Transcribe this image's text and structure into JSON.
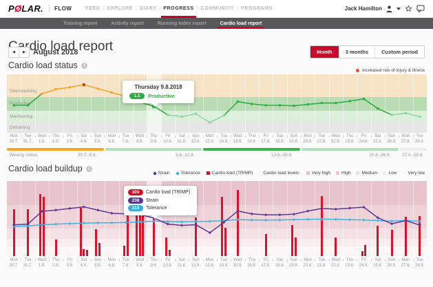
{
  "app": {
    "logo_p": "P",
    "logo_o": "Ø",
    "logo_rest": "LAR.",
    "flow": "FLOW",
    "nav": [
      "FEED",
      "EXPLORE",
      "DIARY",
      "PROGRESS",
      "COMMUNITY",
      "PROGRAMS"
    ],
    "active_nav": "PROGRESS",
    "user": "Jack Hamilton"
  },
  "subnav": {
    "items": [
      "Training report",
      "Activity report",
      "Running Index report",
      "Cardio load report"
    ],
    "active": "Cardio load report"
  },
  "page": {
    "title": "Cardio load report",
    "period_label": "August 2018",
    "period_buttons": [
      "Month",
      "3 months",
      "Custom period"
    ],
    "active_period": "Month",
    "prev_arrow": "◀",
    "next_arrow": "▶"
  },
  "status_section": {
    "title": "Cardio load status",
    "risk_legend": "Increased risk of injury & illness",
    "weekly_status_label": "Weekly status"
  },
  "buildup_section": {
    "title": "Cardio load buildup",
    "legend": {
      "strain": "Strain",
      "tolerance": "Tolerance",
      "trimp": "Cardio load (TRIMP)",
      "levels_label": "Cardio load levels:",
      "levels": [
        "Very high",
        "High",
        "Medium",
        "Low",
        "Very low"
      ],
      "level_colors": [
        "#ecb9c4",
        "#f0c9d2",
        "#f5dae0",
        "#f9e9ec",
        "#fcf4f5"
      ]
    }
  },
  "colors": {
    "accent_red": "#d10027",
    "trimp_bar": "#d5152b",
    "strain": "#5b3794",
    "tolerance": "#3ab5e8",
    "risk_dot": "#e4552c"
  },
  "chart_data": [
    {
      "type": "line",
      "title": "Cardio load status",
      "x": [
        {
          "day": "Mon",
          "date": "30.7."
        },
        {
          "day": "Tue",
          "date": "31.7."
        },
        {
          "day": "Wed",
          "date": "1.8."
        },
        {
          "day": "Thu",
          "date": "2.8."
        },
        {
          "day": "Fri",
          "date": "3.8."
        },
        {
          "day": "Sat",
          "date": "4.8."
        },
        {
          "day": "Sun",
          "date": "5.8."
        },
        {
          "day": "Mon",
          "date": "6.8."
        },
        {
          "day": "Tue",
          "date": "7.8."
        },
        {
          "day": "Wed",
          "date": "8.8."
        },
        {
          "day": "Thu",
          "date": "9.8."
        },
        {
          "day": "Fri",
          "date": "10.8."
        },
        {
          "day": "Sat",
          "date": "11.8."
        },
        {
          "day": "Sun",
          "date": "12.8."
        },
        {
          "day": "Mon",
          "date": "13.8."
        },
        {
          "day": "Tue",
          "date": "14.8."
        },
        {
          "day": "Wed",
          "date": "15.8."
        },
        {
          "day": "Thu",
          "date": "16.8."
        },
        {
          "day": "Fri",
          "date": "17.8."
        },
        {
          "day": "Sat",
          "date": "18.8."
        },
        {
          "day": "Sun",
          "date": "19.8."
        },
        {
          "day": "Mon",
          "date": "20.8."
        },
        {
          "day": "Tue",
          "date": "21.8."
        },
        {
          "day": "Wed",
          "date": "22.8."
        },
        {
          "day": "Thu",
          "date": "23.8."
        },
        {
          "day": "Fri",
          "date": "24.8."
        },
        {
          "day": "Sat",
          "date": "25.8."
        },
        {
          "day": "Sun",
          "date": "26.8."
        },
        {
          "day": "Mon",
          "date": "27.8."
        },
        {
          "day": "Tue",
          "date": "28.8."
        }
      ],
      "values": [
        1.12,
        1.12,
        1.35,
        1.42,
        1.45,
        1.49,
        1.43,
        1.37,
        1.31,
        1.19,
        1.1,
        0.93,
        0.9,
        0.95,
        0.8,
        0.92,
        1.2,
        1.15,
        1.12,
        1.12,
        1.11,
        1.14,
        1.17,
        1.17,
        1.21,
        1.26,
        1.05,
        0.93,
        0.96,
        0.9
      ],
      "statuses": [
        "productive",
        "productive",
        "overreaching",
        "overreaching",
        "overreaching",
        "peak",
        "overreaching",
        "overreaching",
        "overreaching",
        "productive",
        "productive",
        "maintaining",
        "maintaining",
        "maintaining",
        "detraining",
        "maintaining",
        "productive",
        "productive",
        "productive",
        "productive",
        "productive",
        "productive",
        "productive",
        "productive",
        "productive",
        "productive",
        "productive",
        "maintaining",
        "maintaining",
        "maintaining"
      ],
      "status_colors": {
        "productive": "#2fad44",
        "overreaching": "#f6a723",
        "peak": "#e03226",
        "maintaining": "#8bd7a4",
        "detraining": "#b9b9b9"
      },
      "bands": [
        {
          "label": "Overreaching",
          "min": 1.3,
          "max": 1.65,
          "color": "#f7e3c6"
        },
        {
          "label": "Productive",
          "min": 1.0,
          "max": 1.3,
          "color": "#b9dcb4"
        },
        {
          "label": "Maintaining",
          "min": 0.8,
          "max": 1.0,
          "color": "#dcefdb"
        },
        {
          "label": "Detraining",
          "min": 0.55,
          "max": 0.8,
          "color": "#e6e6e6"
        }
      ],
      "selected_index": 10,
      "selected_tooltip": {
        "title": "Thursday 9.8.2018",
        "value": "1.1",
        "label": "Productive",
        "pill_color": "#2fad44"
      },
      "weekly_status": [
        {
          "label": "30.7.-5.8.",
          "days": 7,
          "color": "#f6a723"
        },
        {
          "label": "6.8.-12.8.",
          "days": 7,
          "color": "#b4dfbd"
        },
        {
          "label": "13.8.-19.8.",
          "days": 7,
          "color": "#3cb54a"
        },
        {
          "label": "20.8.-26.8.",
          "days": 7,
          "color": "#b4dfbd"
        },
        {
          "label": "27.8.-28.8.",
          "days": 2,
          "color": "#ececec"
        }
      ]
    },
    {
      "type": "bar+line",
      "title": "Cardio load buildup",
      "x_same_as_first_chart": true,
      "ylim": [
        0,
        470
      ],
      "series": [
        {
          "name": "Strain",
          "color": "#5b3794",
          "values": [
            195,
            200,
            280,
            288,
            298,
            308,
            288,
            268,
            264,
            260,
            238,
            200,
            192,
            196,
            146,
            211,
            282,
            264,
            258,
            258,
            262,
            282,
            298,
            294,
            300,
            306,
            240,
            202,
            222,
            194
          ]
        },
        {
          "name": "Tolerance",
          "color": "#3ab5e8",
          "values": [
            185,
            188,
            196,
            200,
            203,
            206,
            208,
            208,
            210,
            214,
            219,
            216,
            214,
            216,
            218,
            222,
            228,
            226,
            225,
            226,
            228,
            230,
            231,
            230,
            228,
            226,
            222,
            219,
            223,
            217
          ]
        }
      ],
      "bars": {
        "name": "Cardio load (TRIMP)",
        "color": "#d5152b",
        "sessions": [
          [
            295
          ],
          [
            295
          ],
          [
            390,
            370
          ],
          [
            105
          ],
          [],
          [
            300,
            45,
            40
          ],
          [
            170,
            80
          ],
          [],
          [
            65,
            255
          ],
          [
            265,
            260,
            255
          ],
          [
            309
          ],
          [
            115,
            40
          ],
          [],
          [
            240
          ],
          [],
          [
            370,
            175
          ],
          [
            415
          ],
          [],
          [
            140
          ],
          [],
          [
            195,
            115
          ],
          [],
          [
            375
          ],
          [
            115
          ],
          [],
          [
            30,
            70
          ],
          [
            190
          ],
          [
            165
          ],
          [
            245
          ],
          [
            250
          ]
        ]
      },
      "levels": [
        {
          "label": "Very high",
          "color": "#e8c4cd",
          "frac": 0.32
        },
        {
          "label": "High",
          "color": "#eed3d9",
          "frac": 0.31
        },
        {
          "label": "Medium",
          "color": "#f4e1e5",
          "frac": 0.14
        },
        {
          "label": "Low",
          "color": "#f9edef",
          "frac": 0.1
        },
        {
          "label": "Very low",
          "color": "#fcf6f7",
          "frac": 0.13
        }
      ],
      "selected_index": 10,
      "selected_tooltip": {
        "rows": [
          {
            "value": "309",
            "label": "Cardio load (TRIMP)",
            "color": "#d10f28"
          },
          {
            "value": "238",
            "label": "Strain",
            "color": "#5b3794"
          },
          {
            "value": "219",
            "label": "Tolerance",
            "color": "#35aee3"
          }
        ]
      }
    }
  ]
}
